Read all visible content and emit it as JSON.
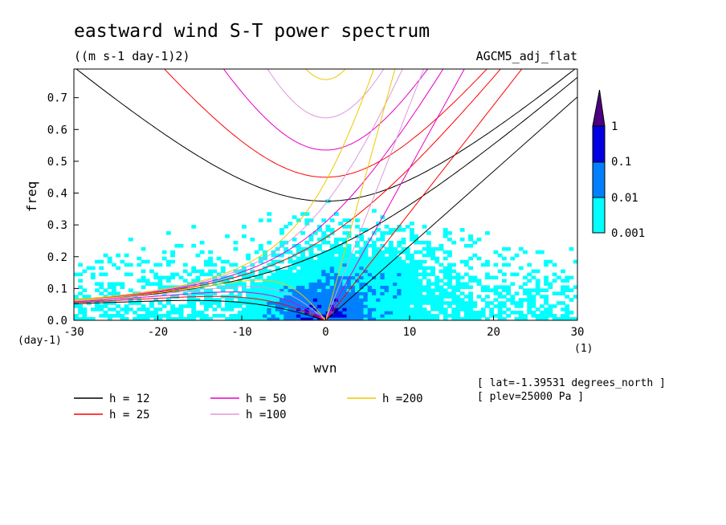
{
  "chart_data": {
    "type": "heatmap",
    "title": "eastward wind S-T power spectrum",
    "subtitle": "((m s-1 day-1)2)",
    "model_label": "AGCM5_adj_flat",
    "xlabel": "wvn",
    "ylabel": "freq",
    "x_unit": "(1)",
    "y_unit": "(day-1)",
    "xlim": [
      -30,
      30
    ],
    "ylim": [
      0,
      0.79
    ],
    "x_ticks": [
      "-30",
      "-20",
      "-10",
      "0",
      "10",
      "20",
      "30"
    ],
    "y_ticks": [
      "0.0",
      "0.1",
      "0.2",
      "0.3",
      "0.4",
      "0.5",
      "0.6",
      "0.7"
    ],
    "colorbar": {
      "levels": [
        "0.001",
        "0.01",
        "0.1",
        "1"
      ],
      "colors": [
        "#00ffff",
        "#0080ff",
        "#0000e0",
        "#4b0082"
      ]
    },
    "legend": [
      {
        "label": "h = 12",
        "color": "#000000",
        "h": 12
      },
      {
        "label": "h = 25",
        "color": "#ff0000",
        "h": 25
      },
      {
        "label": "h = 50",
        "color": "#e600c8",
        "h": 50
      },
      {
        "label": "h =100",
        "color": "#dd99dd",
        "h": 100
      },
      {
        "label": "h =200",
        "color": "#f0c800",
        "h": 200
      }
    ],
    "annotations": [
      "[ lat=-1.39531 degrees_north ]",
      "[ plev=25000 Pa ]"
    ]
  }
}
